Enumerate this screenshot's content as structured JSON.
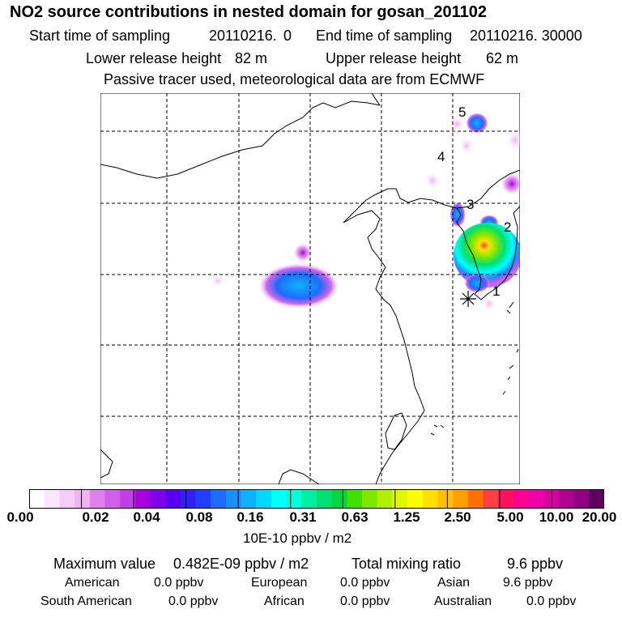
{
  "title": "NO2 source contributions in nested domain for gosan_201102",
  "header": {
    "start_label": "Start time of sampling",
    "start_value": "20110216.",
    "start_hour": "0",
    "end_label": "End time of sampling",
    "end_value": "20110216. 30000",
    "lower_label": "Lower release height",
    "lower_value": "82 m",
    "upper_label": "Upper release height",
    "upper_value": "62 m",
    "note": "Passive tracer used, meteorological data are from ECMWF"
  },
  "map": {
    "markers": [
      {
        "label": "1",
        "lon": 127.0,
        "lat": 33.9
      },
      {
        "label": "2",
        "lon": 128.3,
        "lat": 37.0
      },
      {
        "label": "3",
        "lon": 127.2,
        "lat": 38.3
      },
      {
        "label": "4",
        "lon": 126.0,
        "lat": 41.0
      },
      {
        "label": "5",
        "lon": 126.8,
        "lat": 43.7
      }
    ],
    "receptor": {
      "name": "gosan",
      "lon": 126.2,
      "lat": 33.3
    },
    "grid": {
      "lon": [
        100,
        105,
        110,
        115,
        120,
        125
      ],
      "lat": [
        20,
        25,
        30,
        35,
        40,
        45
      ]
    },
    "extent": {
      "lon": [
        95,
        130
      ],
      "lat": [
        17,
        48
      ]
    }
  },
  "colorbar": {
    "ticks": [
      "0.00",
      "0.02",
      "0.04",
      "0.08",
      "0.16",
      "0.31",
      "0.63",
      "1.25",
      "2.50",
      "5.00",
      "10.00",
      "20.00"
    ],
    "colors": [
      "#ffffff",
      "#fbe6fb",
      "#f5ccf7",
      "#efb2f3",
      "#e080ee",
      "#d060ea",
      "#c040e6",
      "#a800e0",
      "#8000e8",
      "#5a00f0",
      "#3020f5",
      "#2040ff",
      "#1e6cff",
      "#1890ff",
      "#10b0ff",
      "#00d8ff",
      "#00ffff",
      "#00ffd8",
      "#00f0a0",
      "#00e070",
      "#00d840",
      "#40e000",
      "#80e800",
      "#b0f000",
      "#e0f800",
      "#ffff00",
      "#ffe000",
      "#ffc000",
      "#ffa000",
      "#ff7000",
      "#ff4040",
      "#ff1060",
      "#ff0090",
      "#f000a8",
      "#d800a0",
      "#b00090",
      "#900080",
      "#600060"
    ],
    "unit": "10E-10 ppbv / m2"
  },
  "stats": {
    "max_label": "Maximum value",
    "max_value": "0.482E-09 ppbv / m2",
    "total_label": "Total mixing ratio",
    "total_value": "9.6 ppbv",
    "regions": [
      {
        "name": "American",
        "value": "0.0 ppbv"
      },
      {
        "name": "European",
        "value": "0.0 ppbv"
      },
      {
        "name": "Asian",
        "value": "9.6 ppbv"
      },
      {
        "name": "South American",
        "value": "0.0 ppbv"
      },
      {
        "name": "African",
        "value": "0.0 ppbv"
      },
      {
        "name": "Australian",
        "value": "0.0 ppbv"
      }
    ]
  }
}
